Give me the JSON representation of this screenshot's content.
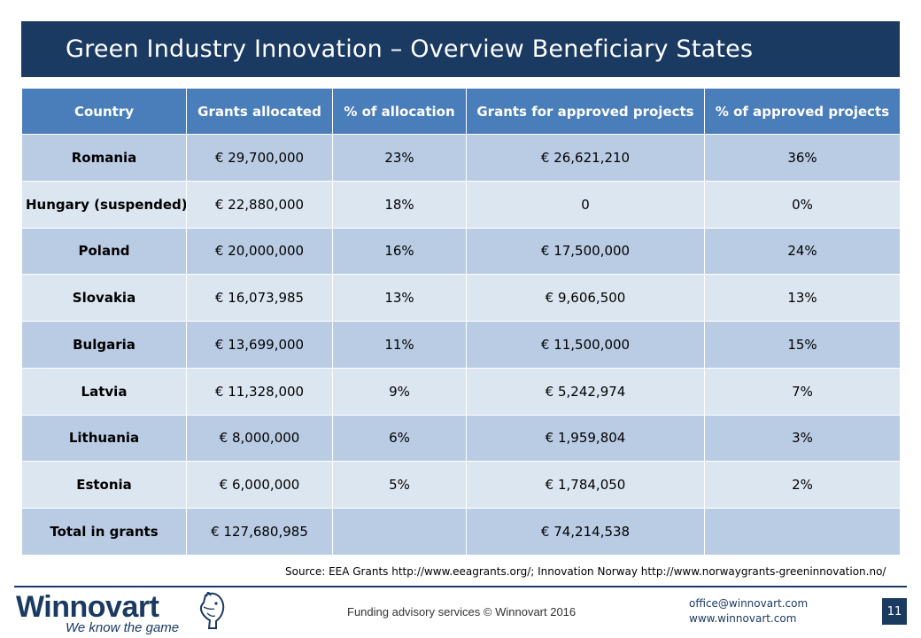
{
  "slide": {
    "title": "Green Industry Innovation – Overview Beneficiary States",
    "page_number": "11"
  },
  "table": {
    "headers": [
      "Country",
      "Grants allocated",
      "% of allocation",
      "Grants for approved projects",
      "% of approved projects"
    ],
    "rows": [
      [
        "Romania",
        "€ 29,700,000",
        "23%",
        "€ 26,621,210",
        "36%"
      ],
      [
        "Hungary (suspended)",
        "€ 22,880,000",
        "18%",
        "0",
        "0%"
      ],
      [
        "Poland",
        "€ 20,000,000",
        "16%",
        "€ 17,500,000",
        "24%"
      ],
      [
        "Slovakia",
        "€ 16,073,985",
        "13%",
        "€ 9,606,500",
        "13%"
      ],
      [
        "Bulgaria",
        "€ 13,699,000",
        "11%",
        "€ 11,500,000",
        "15%"
      ],
      [
        "Latvia",
        "€ 11,328,000",
        "9%",
        "€ 5,242,974",
        "7%"
      ],
      [
        "Lithuania",
        "€ 8,000,000",
        "6%",
        "€ 1,959,804",
        "3%"
      ],
      [
        "Estonia",
        "€ 6,000,000",
        "5%",
        "€ 1,784,050",
        "2%"
      ],
      [
        "Total in grants",
        "€ 127,680,985",
        "",
        "€ 74,214,538",
        ""
      ]
    ]
  },
  "source": "Source: EEA Grants http://www.eeagrants.org/; Innovation Norway http://www.norwaygrants-greeninnovation.no/",
  "footer": {
    "logo_text": "Winnovart",
    "logo_tagline": "We know the game",
    "center_text": "Funding advisory services © Winnovart 2016",
    "email": "office@winnovart.com",
    "website": "www.winnovart.com"
  },
  "colors": {
    "navy": "#1b3a62",
    "header_blue": "#4a7ebb",
    "row_dark": "#b9cce4",
    "row_light": "#dce6f1"
  },
  "icons": {
    "logo_mark": "horse-head-icon"
  }
}
